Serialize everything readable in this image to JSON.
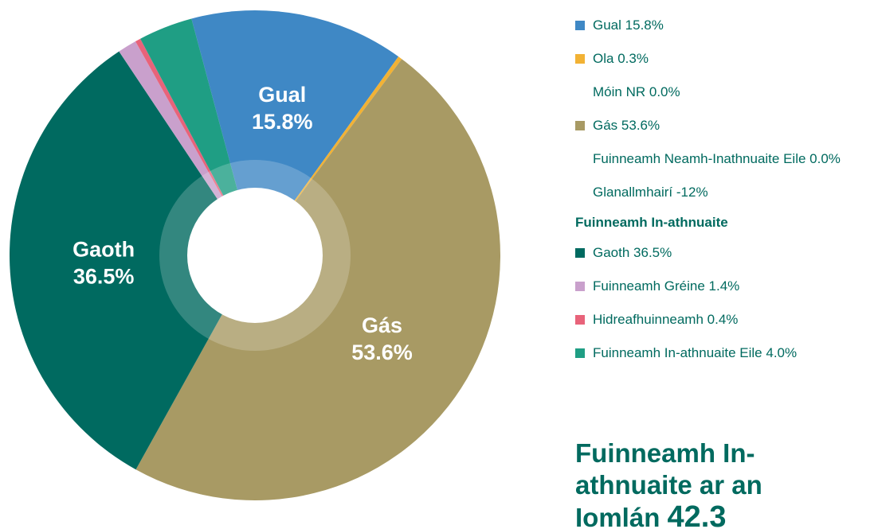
{
  "chart_data": {
    "type": "pie",
    "groups": [
      {
        "categories": [
          "Gual",
          "Ola",
          "Móin NR",
          "Gás",
          "Fuinneamh Neamh-Inathnuaite Eile",
          "Glanallmhairí"
        ],
        "values": [
          15.8,
          0.3,
          0.0,
          53.6,
          0.0,
          -12
        ],
        "value_labels": [
          "15.8%",
          "0.3%",
          "0.0%",
          "53.6%",
          "0.0%",
          "-12%"
        ],
        "colors": [
          "#3f88c5",
          "#f2b234",
          null,
          "#a89a64",
          null,
          null
        ]
      },
      {
        "name": "Fuinneamh In-athnuaite",
        "categories": [
          "Gaoth",
          "Fuinneamh Gréine",
          "Hidreafhuinneamh",
          "Fuinneamh In-athnuaite Eile"
        ],
        "values": [
          36.5,
          1.4,
          0.4,
          4.0
        ],
        "value_labels": [
          "36.5%",
          "1.4%",
          "0.4%",
          "4.0%"
        ],
        "colors": [
          "#006a60",
          "#c9a0cc",
          "#e8637a",
          "#1f9e84"
        ]
      }
    ],
    "total_label": "Fuinneamh In-athnuaite ar an Iomlán",
    "total_value": 42.3
  }
}
